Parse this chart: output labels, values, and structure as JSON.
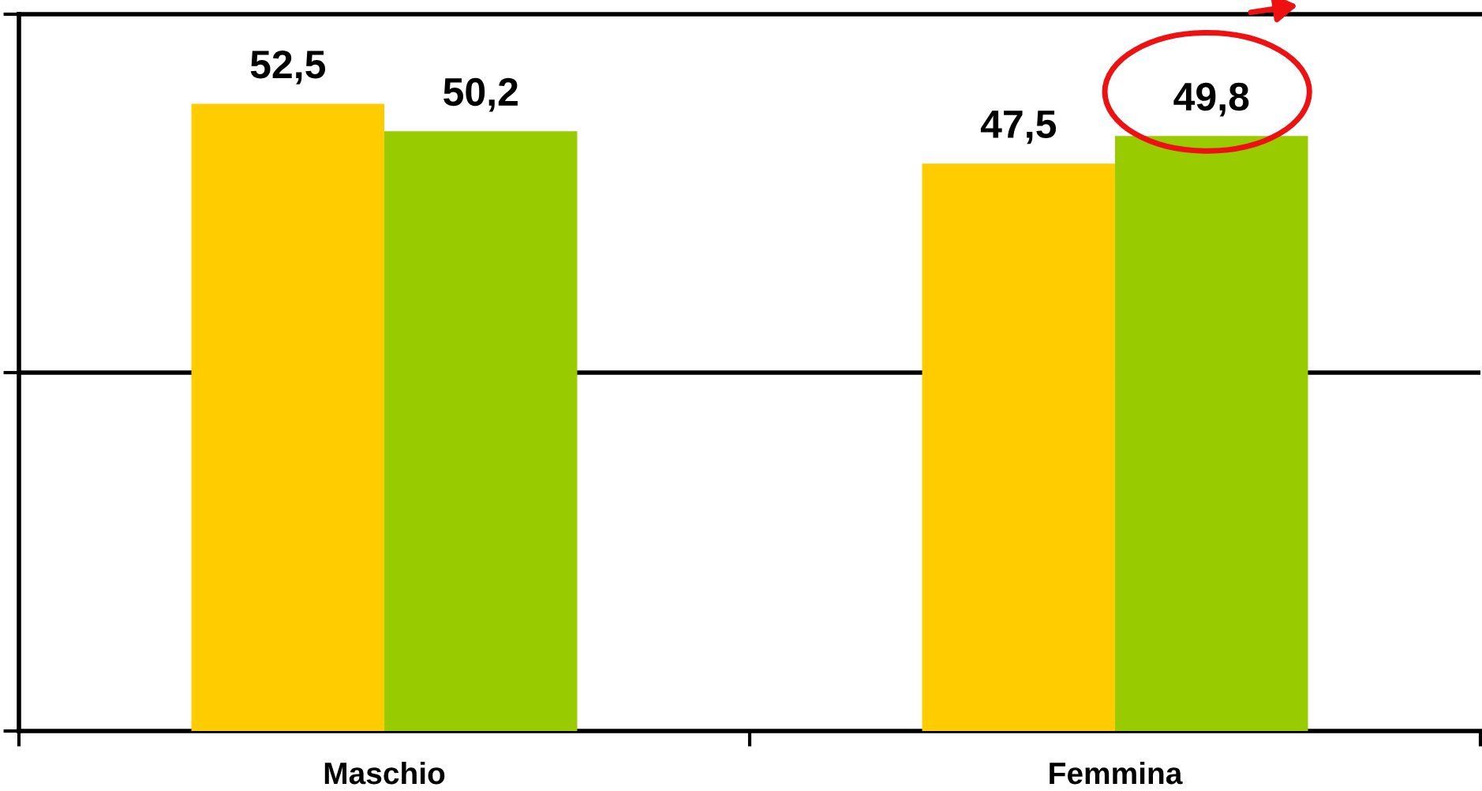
{
  "chart_data": {
    "type": "bar",
    "categories": [
      "Maschio",
      "Femmina"
    ],
    "series": [
      {
        "color": "#ffcc00",
        "values": [
          52.5,
          47.5
        ],
        "value_labels": [
          "52,5",
          "47,5"
        ]
      },
      {
        "color": "#99cc00",
        "values": [
          50.2,
          49.8
        ],
        "value_labels": [
          "50,2",
          "49,8"
        ]
      }
    ],
    "ylim": [
      0,
      60
    ],
    "yticks": [
      {
        "value": 0,
        "label": null
      },
      {
        "value": 30,
        "label": null
      },
      {
        "value": 60,
        "label": null
      }
    ],
    "ref_lines": [
      {
        "axis": "y",
        "value": 30,
        "color": "#000000"
      }
    ],
    "tick_labels": "x"
  }
}
